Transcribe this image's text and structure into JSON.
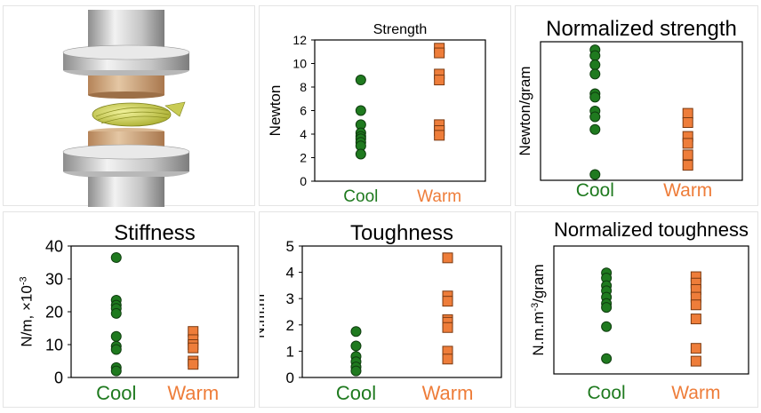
{
  "colors": {
    "cool": "#1f7a1f",
    "cool_edge": "#0f3d0f",
    "warm": "#ee7d3a",
    "warm_edge": "#7a3a12",
    "axis": "#000000"
  },
  "figure": {
    "illustration": "compression-test-illustration"
  },
  "chart_data": [
    {
      "type": "scatter",
      "title": "Strength",
      "ylabel": "Newton",
      "categories": [
        "Cool",
        "Warm"
      ],
      "ylim": [
        0,
        12
      ],
      "yticks": [
        "0",
        "2",
        "4",
        "6",
        "8",
        "10",
        "12"
      ],
      "series": [
        {
          "category": "Cool",
          "values": [
            8.6,
            6.0,
            4.8,
            4.1,
            3.8,
            3.6,
            3.3,
            3.0,
            2.3
          ]
        },
        {
          "category": "Warm",
          "values": [
            11.3,
            10.9,
            9.1,
            8.6,
            4.8,
            4.3,
            3.9
          ]
        }
      ]
    },
    {
      "type": "scatter",
      "title": "Normalized strength",
      "ylabel": "Newton/gram",
      "categories": [
        "Cool",
        "Warm"
      ],
      "ylim": [
        0,
        12
      ],
      "yticks": [],
      "series": [
        {
          "category": "Cool",
          "values": [
            11.3,
            10.8,
            10.0,
            9.2,
            7.5,
            7.2,
            6.0,
            5.5,
            4.4,
            0.5
          ]
        },
        {
          "category": "Warm",
          "values": [
            5.8,
            5.0,
            3.8,
            3.2,
            2.2,
            1.3
          ]
        }
      ]
    },
    {
      "type": "scatter",
      "title": "Stiffness",
      "ylabel": "N/m, ×10",
      "ylabel_sup": "-3",
      "categories": [
        "Cool",
        "Warm"
      ],
      "ylim": [
        0,
        40
      ],
      "yticks": [
        "0",
        "10",
        "20",
        "30",
        "40"
      ],
      "series": [
        {
          "category": "Cool",
          "values": [
            36.5,
            23.5,
            22.0,
            21.0,
            19.5,
            12.5,
            9.5,
            8.5,
            3.0,
            2.0
          ]
        },
        {
          "category": "Warm",
          "values": [
            14.0,
            11.5,
            10.0,
            9.0,
            5.0,
            4.0
          ]
        }
      ]
    },
    {
      "type": "scatter",
      "title": "Toughness",
      "ylabel": "N.m.m",
      "ylabel_sup": "-3",
      "categories": [
        "Cool",
        "Warm"
      ],
      "ylim": [
        0,
        5
      ],
      "yticks": [
        "0",
        "1",
        "2",
        "3",
        "4",
        "5"
      ],
      "series": [
        {
          "category": "Cool",
          "values": [
            1.75,
            1.2,
            0.8,
            0.6,
            0.4,
            0.25
          ]
        },
        {
          "category": "Warm",
          "values": [
            4.55,
            3.1,
            2.9,
            2.2,
            2.1,
            1.9,
            1.0,
            0.7
          ]
        }
      ]
    },
    {
      "type": "scatter",
      "title": "Normalized toughness",
      "ylabel_parts": [
        "N.m.m",
        "-3",
        "/gram"
      ],
      "categories": [
        "Cool",
        "Warm"
      ],
      "ylim": [
        0,
        10
      ],
      "yticks": [],
      "series": [
        {
          "category": "Cool",
          "values": [
            7.9,
            7.5,
            6.9,
            6.5,
            6.0,
            5.5,
            5.2,
            3.7,
            1.2
          ]
        },
        {
          "category": "Warm",
          "values": [
            7.6,
            7.1,
            6.6,
            6.0,
            5.4,
            4.3,
            2.0,
            1.0
          ]
        }
      ]
    }
  ]
}
